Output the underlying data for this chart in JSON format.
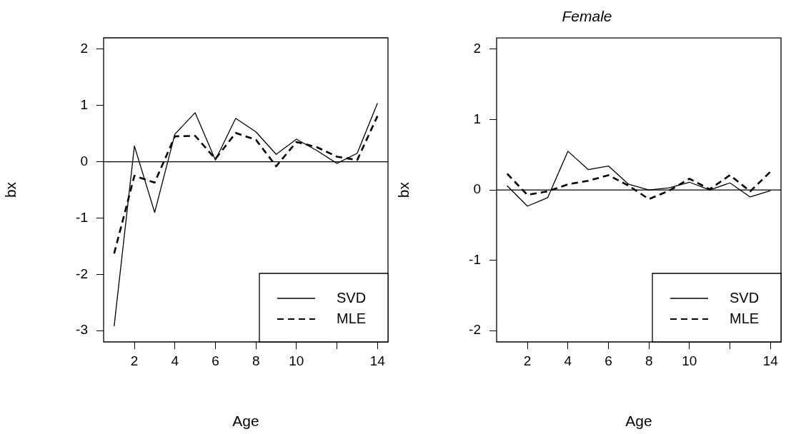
{
  "chart_data": [
    {
      "type": "line",
      "xlabel": "Age",
      "ylabel": "bx",
      "x": [
        1,
        2,
        3,
        4,
        5,
        6,
        7,
        8,
        9,
        10,
        11,
        12,
        13,
        14
      ],
      "series": [
        {
          "name": "SVD",
          "color": "#000000",
          "line_style": "solid",
          "values": [
            -2.92,
            0.28,
            -0.9,
            0.49,
            0.87,
            0.03,
            0.77,
            0.53,
            0.13,
            0.4,
            0.2,
            -0.03,
            0.15,
            1.04
          ]
        },
        {
          "name": "MLE",
          "color": "#000000",
          "line_style": "dashed",
          "values": [
            -1.63,
            -0.25,
            -0.37,
            0.45,
            0.46,
            0.05,
            0.51,
            0.39,
            -0.08,
            0.35,
            0.26,
            0.09,
            0.03,
            0.81
          ]
        }
      ],
      "xlim": [
        0.48,
        14.52
      ],
      "xticks": [
        2,
        4,
        6,
        8,
        10,
        {
          "value": 12,
          "label": null
        },
        14
      ],
      "ylim": [
        -3.2,
        2.2
      ],
      "yticks": [
        -3,
        -2,
        -1,
        0,
        1,
        2
      ],
      "ref_lines": [
        {
          "axis": "y",
          "value": 0,
          "color": "#000000"
        }
      ],
      "legend": "bottom right",
      "grid": false,
      "marker": "none"
    },
    {
      "type": "line",
      "title": "Female",
      "xlabel": "Age",
      "ylabel": "bx",
      "x": [
        1,
        2,
        3,
        4,
        5,
        6,
        7,
        8,
        9,
        10,
        11,
        12,
        13,
        14
      ],
      "series": [
        {
          "name": "SVD",
          "color": "#000000",
          "line_style": "solid",
          "values": [
            0.06,
            -0.23,
            -0.11,
            0.55,
            0.29,
            0.34,
            0.08,
            0,
            0.03,
            0.11,
            0,
            0.1,
            -0.1,
            -0.01
          ]
        },
        {
          "name": "MLE",
          "color": "#000000",
          "line_style": "dashed",
          "values": [
            0.23,
            -0.07,
            -0.02,
            0.08,
            0.13,
            0.21,
            0.06,
            -0.13,
            -0.01,
            0.16,
            0.01,
            0.21,
            -0.02,
            0.26
          ]
        }
      ],
      "xlim": [
        0.48,
        14.52
      ],
      "xticks": [
        2,
        4,
        6,
        8,
        10,
        {
          "value": 12,
          "label": null
        },
        14
      ],
      "ylim": [
        -2.16,
        2.16
      ],
      "yticks": [
        -2,
        -1,
        0,
        1,
        2
      ],
      "ref_lines": [
        {
          "axis": "y",
          "value": 0,
          "color": "#000000"
        }
      ],
      "legend": "bottom right",
      "grid": false,
      "marker": "none"
    }
  ]
}
